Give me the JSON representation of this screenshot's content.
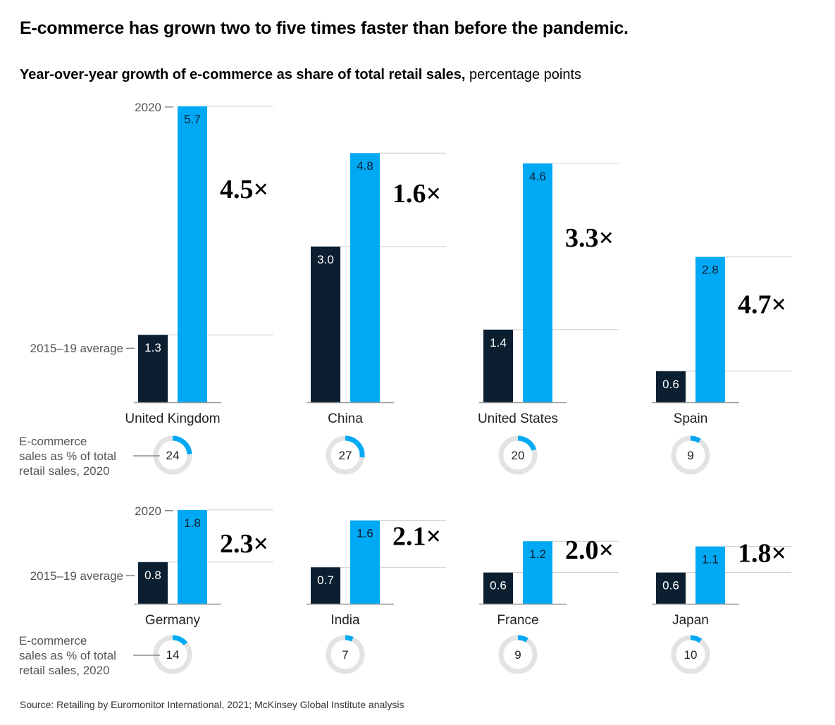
{
  "title": "E-commerce has grown two to five times faster than before the pandemic.",
  "subtitle_bold": "Year-over-year growth of e-commerce as share of total retail sales,",
  "subtitle_rest": " percentage points",
  "source": "Source: Retailing by Euromonitor International, 2021; McKinsey Global Institute analysis",
  "colors": {
    "baseline_bar": "#0b1f30",
    "bar_2020": "#00a9f4",
    "donut_track": "#e3e3e3",
    "donut_fill": "#00a9f4",
    "gridline": "#cccccc"
  },
  "chart_data": {
    "type": "bar",
    "y_axis_labels": {
      "year_2020": "2020",
      "baseline": "2015–19 average"
    },
    "donut_legend": [
      "E-commerce",
      "sales as % of total",
      "retail sales, 2020"
    ],
    "series": [
      {
        "name": "2015–19 average"
      },
      {
        "name": "2020"
      }
    ],
    "panels": [
      {
        "country": "United Kingdom",
        "avg_2015_19": 1.3,
        "y2020": 5.7,
        "multiplier": "4.5×",
        "ecommerce_share_2020": 24
      },
      {
        "country": "China",
        "avg_2015_19": 3.0,
        "y2020": 4.8,
        "multiplier": "1.6×",
        "ecommerce_share_2020": 27
      },
      {
        "country": "United States",
        "avg_2015_19": 1.4,
        "y2020": 4.6,
        "multiplier": "3.3×",
        "ecommerce_share_2020": 20
      },
      {
        "country": "Spain",
        "avg_2015_19": 0.6,
        "y2020": 2.8,
        "multiplier": "4.7×",
        "ecommerce_share_2020": 9
      },
      {
        "country": "Germany",
        "avg_2015_19": 0.8,
        "y2020": 1.8,
        "multiplier": "2.3×",
        "ecommerce_share_2020": 14
      },
      {
        "country": "India",
        "avg_2015_19": 0.7,
        "y2020": 1.6,
        "multiplier": "2.1×",
        "ecommerce_share_2020": 7
      },
      {
        "country": "France",
        "avg_2015_19": 0.6,
        "y2020": 1.2,
        "multiplier": "2.0×",
        "ecommerce_share_2020": 9
      },
      {
        "country": "Japan",
        "avg_2015_19": 0.6,
        "y2020": 1.1,
        "multiplier": "1.8×",
        "ecommerce_share_2020": 10
      }
    ]
  }
}
